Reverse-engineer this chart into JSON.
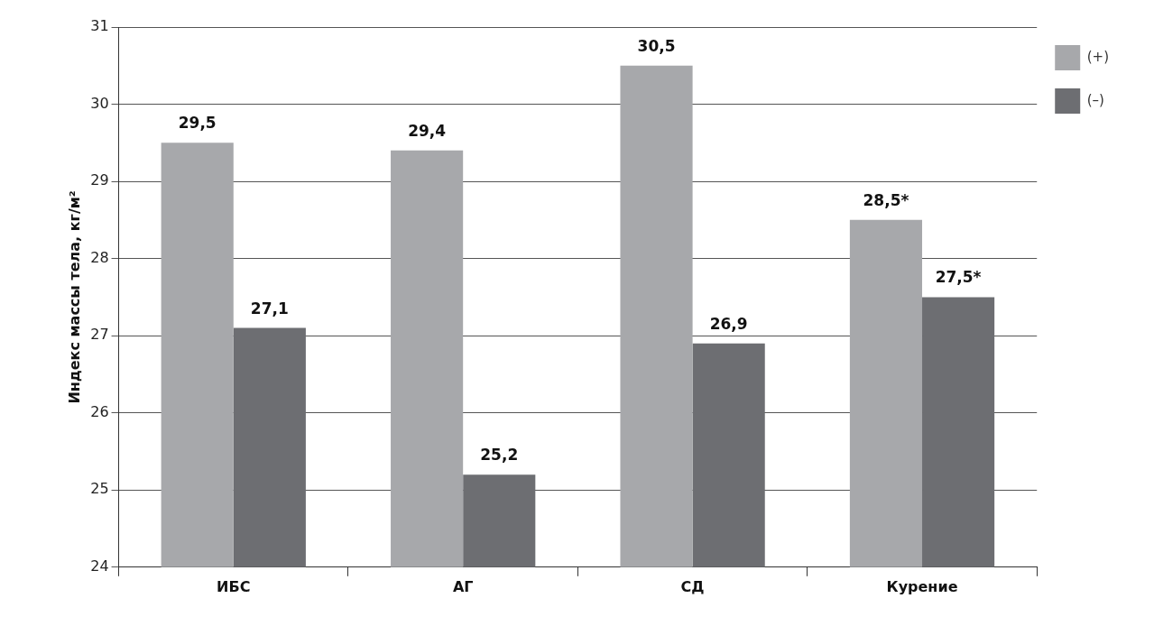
{
  "chart_data": {
    "type": "bar",
    "ylabel": "Индекс массы тела, кг/м²",
    "categories": [
      "ИБС",
      "АГ",
      "СД",
      "Курение"
    ],
    "series": [
      {
        "name": "(+)",
        "color": "#a7a8ab",
        "values": [
          29.5,
          29.4,
          30.5,
          28.5
        ],
        "value_labels": [
          "29,5",
          "29,4",
          "30,5",
          "28,5*"
        ]
      },
      {
        "name": "(–)",
        "color": "#6d6e72",
        "values": [
          27.1,
          25.2,
          26.9,
          27.5
        ],
        "value_labels": [
          "27,1",
          "25,2",
          "26,9",
          "27,5*"
        ]
      }
    ],
    "ylim": [
      24,
      31
    ],
    "yticks": [
      24,
      25,
      26,
      27,
      28,
      29,
      30,
      31
    ],
    "grid": "y",
    "legend": "top right"
  }
}
